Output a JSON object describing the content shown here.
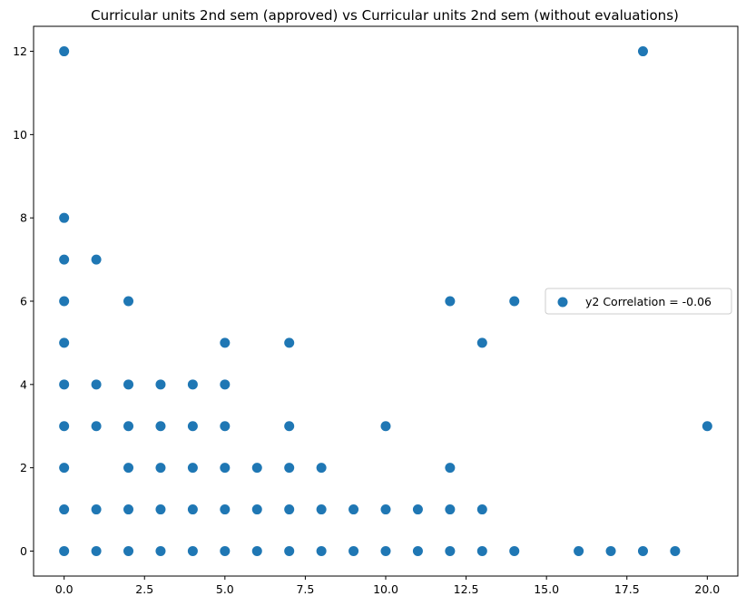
{
  "chart_data": {
    "type": "scatter",
    "title": "Curricular units 2nd sem (approved) vs Curricular units 2nd sem (without evaluations)",
    "xlabel": "",
    "ylabel": "",
    "xlim": [
      -0.95,
      20.95
    ],
    "ylim": [
      -0.6,
      12.6
    ],
    "xticks": [
      0,
      2.5,
      5,
      7.5,
      10,
      12.5,
      15,
      17.5,
      20
    ],
    "xtick_labels": [
      "0.0",
      "2.5",
      "5.0",
      "7.5",
      "10.0",
      "12.5",
      "15.0",
      "17.5",
      "20.0"
    ],
    "yticks": [
      0,
      2,
      4,
      6,
      8,
      10,
      12
    ],
    "ytick_labels": [
      "0",
      "2",
      "4",
      "6",
      "8",
      "10",
      "12"
    ],
    "grid": false,
    "legend_position": "center-right",
    "series": [
      {
        "name": "y2 Correlation = -0.06",
        "color": "#1f77b4",
        "points": [
          [
            0,
            0
          ],
          [
            0,
            1
          ],
          [
            0,
            2
          ],
          [
            0,
            3
          ],
          [
            0,
            4
          ],
          [
            0,
            5
          ],
          [
            0,
            6
          ],
          [
            0,
            7
          ],
          [
            0,
            8
          ],
          [
            0,
            12
          ],
          [
            1,
            0
          ],
          [
            1,
            1
          ],
          [
            1,
            3
          ],
          [
            1,
            4
          ],
          [
            1,
            7
          ],
          [
            2,
            0
          ],
          [
            2,
            1
          ],
          [
            2,
            2
          ],
          [
            2,
            3
          ],
          [
            2,
            4
          ],
          [
            2,
            6
          ],
          [
            3,
            0
          ],
          [
            3,
            1
          ],
          [
            3,
            2
          ],
          [
            3,
            3
          ],
          [
            3,
            4
          ],
          [
            4,
            0
          ],
          [
            4,
            1
          ],
          [
            4,
            2
          ],
          [
            4,
            3
          ],
          [
            4,
            4
          ],
          [
            5,
            0
          ],
          [
            5,
            1
          ],
          [
            5,
            2
          ],
          [
            5,
            3
          ],
          [
            5,
            4
          ],
          [
            5,
            5
          ],
          [
            6,
            0
          ],
          [
            6,
            1
          ],
          [
            6,
            2
          ],
          [
            7,
            0
          ],
          [
            7,
            1
          ],
          [
            7,
            2
          ],
          [
            7,
            3
          ],
          [
            7,
            5
          ],
          [
            8,
            0
          ],
          [
            8,
            1
          ],
          [
            8,
            2
          ],
          [
            9,
            0
          ],
          [
            9,
            1
          ],
          [
            10,
            0
          ],
          [
            10,
            1
          ],
          [
            10,
            3
          ],
          [
            11,
            0
          ],
          [
            11,
            1
          ],
          [
            12,
            0
          ],
          [
            12,
            1
          ],
          [
            12,
            2
          ],
          [
            12,
            6
          ],
          [
            13,
            0
          ],
          [
            13,
            1
          ],
          [
            13,
            5
          ],
          [
            14,
            0
          ],
          [
            14,
            6
          ],
          [
            16,
            0
          ],
          [
            17,
            0
          ],
          [
            18,
            0
          ],
          [
            18,
            12
          ],
          [
            19,
            0
          ],
          [
            20,
            3
          ]
        ]
      }
    ]
  }
}
